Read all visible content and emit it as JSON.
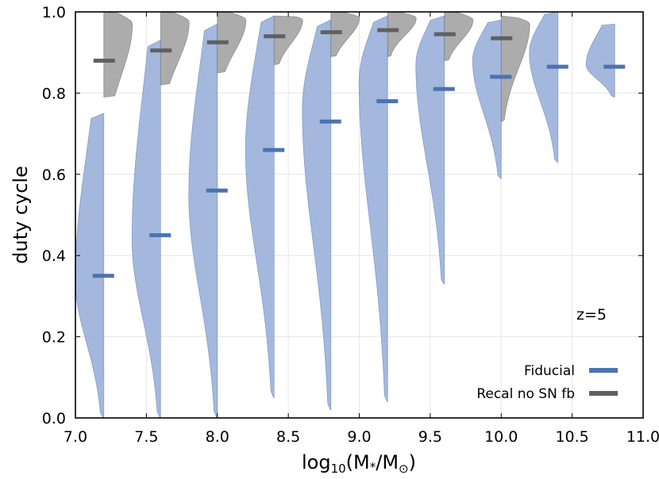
{
  "chart_data": {
    "type": "violin",
    "xlabel_main": "log",
    "xlabel_sub": "10",
    "xlabel_rest": "(M",
    "xlabel_star": "*",
    "xlabel_slash": "/M",
    "xlabel_sun": "⊙",
    "xlabel_close": ")",
    "ylabel": "duty cycle",
    "xlim": [
      7.0,
      11.0
    ],
    "ylim": [
      0.0,
      1.0
    ],
    "xticks": [
      "7.0",
      "7.5",
      "8.0",
      "8.5",
      "9.0",
      "9.5",
      "10.0",
      "10.5",
      "11.0"
    ],
    "yticks": [
      "0.0",
      "0.2",
      "0.4",
      "0.6",
      "0.8",
      "1.0"
    ],
    "annotation": "z=5",
    "grid": true,
    "legend_position": "bottom-right",
    "mass_bins": [
      7.2,
      7.6,
      8.0,
      8.4,
      8.8,
      9.2,
      9.6,
      10.0,
      10.4,
      10.8
    ],
    "series": [
      {
        "name": "Fiducial",
        "color": "#4c72b0",
        "fill": "#9fb4dc",
        "side": "left",
        "medians": [
          0.35,
          0.45,
          0.56,
          0.66,
          0.73,
          0.78,
          0.81,
          0.84,
          0.865,
          0.865
        ],
        "ranges": [
          [
            0.0,
            0.75
          ],
          [
            0.0,
            0.93
          ],
          [
            0.0,
            0.97
          ],
          [
            0.05,
            0.99
          ],
          [
            0.02,
            0.98
          ],
          [
            0.04,
            0.99
          ],
          [
            0.33,
            0.99
          ],
          [
            0.59,
            0.98
          ],
          [
            0.63,
            1.0
          ],
          [
            0.79,
            0.97
          ]
        ],
        "peaks": [
          0.34,
          0.44,
          0.55,
          0.66,
          0.76,
          0.83,
          0.87,
          0.88,
          0.9,
          0.87
        ]
      },
      {
        "name": "Recal no SN fb",
        "color": "#606060",
        "fill": "#a8a8a8",
        "side": "right",
        "medians": [
          0.88,
          0.905,
          0.925,
          0.94,
          0.95,
          0.955,
          0.945,
          0.935
        ],
        "ranges": [
          [
            0.79,
            1.0
          ],
          [
            0.82,
            1.0
          ],
          [
            0.85,
            1.0
          ],
          [
            0.87,
            0.99
          ],
          [
            0.89,
            1.0
          ],
          [
            0.89,
            1.0
          ],
          [
            0.88,
            1.0
          ],
          [
            0.73,
            0.99
          ]
        ],
        "peaks": [
          0.97,
          0.975,
          0.98,
          0.98,
          0.985,
          0.985,
          0.98,
          0.97
        ]
      }
    ]
  }
}
